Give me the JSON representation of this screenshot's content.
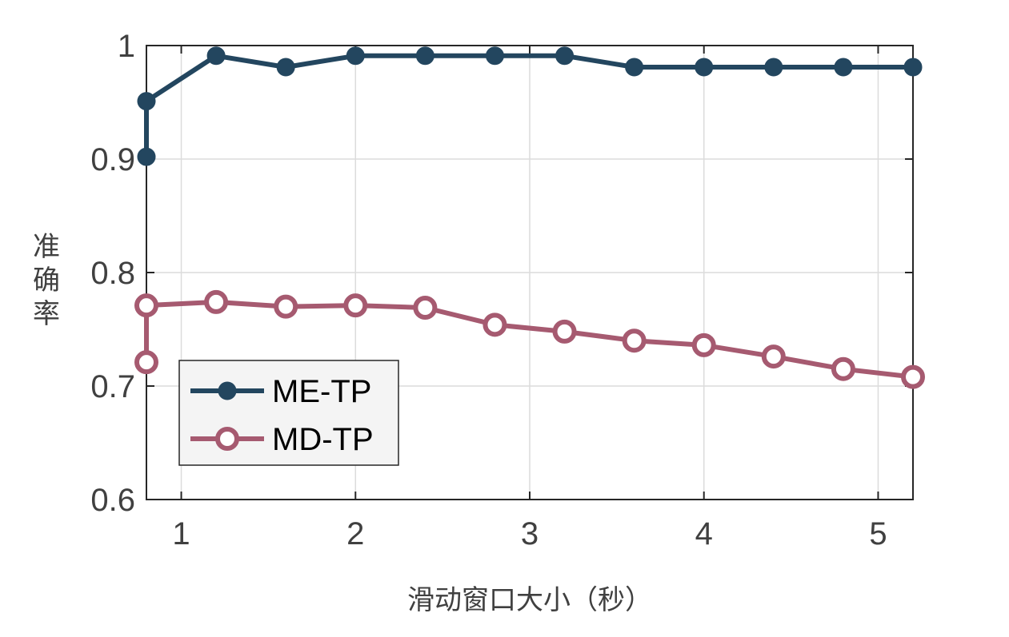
{
  "chart_data": {
    "type": "line",
    "title": "",
    "xlabel": "滑动窗口大小（秒）",
    "ylabel": "准确率",
    "xlim": [
      0.8,
      5.2
    ],
    "ylim": [
      0.6,
      1.0
    ],
    "xticks": [
      1,
      2,
      3,
      4,
      5
    ],
    "xtick_labels": [
      "1",
      "2",
      "3",
      "4",
      "5"
    ],
    "yticks": [
      0.6,
      0.7,
      0.8,
      0.9,
      1.0
    ],
    "ytick_labels": [
      "0.6",
      "0.7",
      "0.8",
      "0.9",
      "1"
    ],
    "grid": true,
    "legend_position": "bottom-left",
    "x": [
      0.8,
      0.8,
      1.2,
      1.6,
      2.0,
      2.4,
      2.8,
      3.2,
      3.6,
      4.0,
      4.4,
      4.8,
      5.2
    ],
    "series": [
      {
        "name": "ME-TP",
        "color": "#23465f",
        "marker": "filled-circle",
        "values": [
          0.902,
          0.951,
          0.991,
          0.981,
          0.991,
          0.991,
          0.991,
          0.991,
          0.981,
          0.981,
          0.981,
          0.981,
          0.981
        ]
      },
      {
        "name": "MD-TP",
        "color": "#a65a70",
        "marker": "open-circle",
        "values": [
          0.721,
          0.771,
          0.774,
          0.77,
          0.771,
          0.769,
          0.754,
          0.748,
          0.74,
          0.736,
          0.726,
          0.715,
          0.708
        ]
      }
    ]
  }
}
